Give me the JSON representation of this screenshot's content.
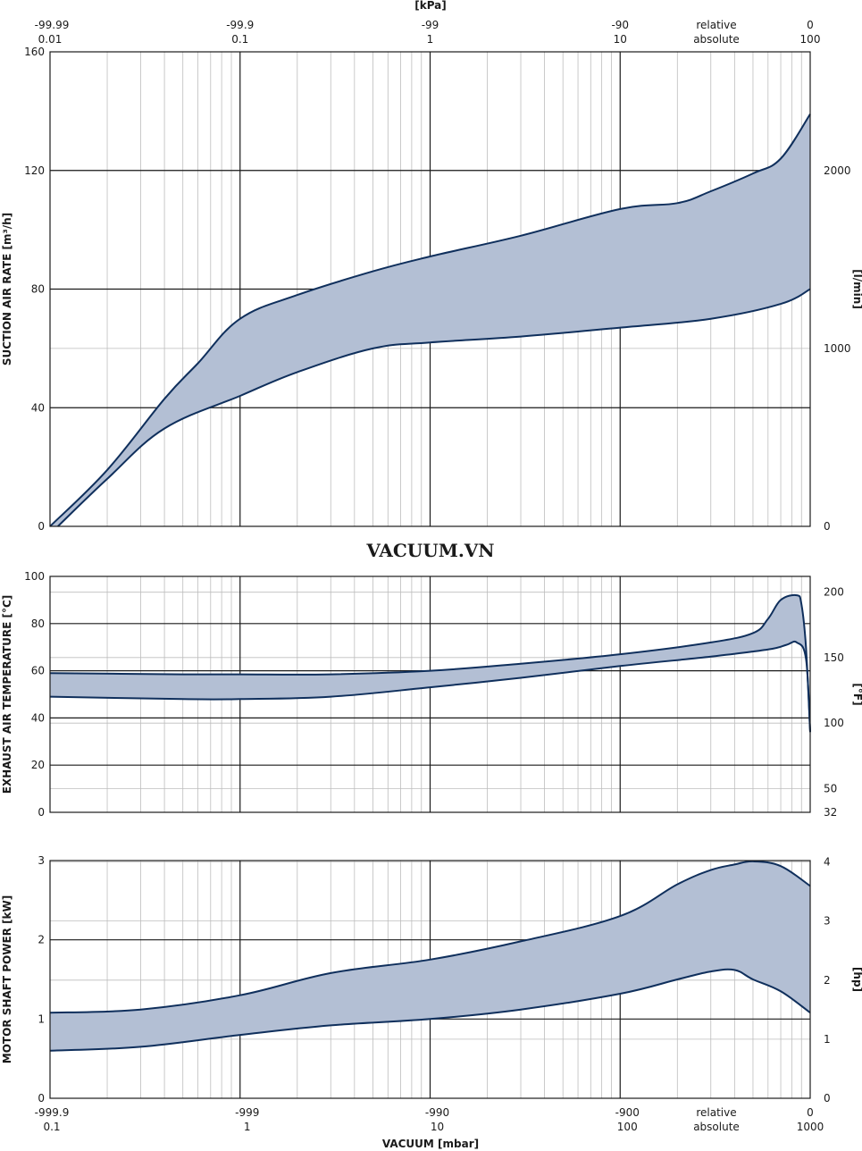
{
  "watermark": "VACUUM.VN",
  "top_axis": {
    "unit_label": "[kPa]",
    "ticks_relative": [
      "-99.99",
      "-99.9",
      "-99",
      "-90",
      "0"
    ],
    "ticks_absolute": [
      "0.01",
      "0.1",
      "1",
      "10",
      "100"
    ],
    "relative_label": "relative",
    "absolute_label": "absolute"
  },
  "bottom_axis": {
    "title": "VACUUM [mbar]",
    "ticks_relative": [
      "-999.9",
      "-999",
      "-990",
      "-900",
      "0"
    ],
    "ticks_absolute": [
      "0.1",
      "1",
      "10",
      "100",
      "1000"
    ],
    "relative_label": "relative",
    "absolute_label": "absolute"
  },
  "colors": {
    "band_fill": "#b3bfd4",
    "curve": "#0f2f5c",
    "grid_major": "#1a1a1a",
    "grid_minor": "#bdbdbd"
  },
  "chart_data": [
    {
      "type": "area",
      "title": "",
      "xlabel": "VACUUM [mbar]",
      "x_scale": "log",
      "xlim": [
        0.1,
        1000
      ],
      "ylabel": "SUCTION AIR RATE [m³/h]",
      "ylim": [
        0,
        160
      ],
      "y_ticks": [
        "0",
        "40",
        "80",
        "120",
        "160"
      ],
      "y2label": "[l/min]",
      "y2_ticks": [
        {
          "label": "0",
          "value": 0
        },
        {
          "label": "1000",
          "value": 60
        },
        {
          "label": "2000",
          "value": 120
        }
      ],
      "series": [
        {
          "x": [
            0.1,
            0.2,
            0.4,
            0.6,
            1,
            2,
            5,
            10,
            30,
            100,
            200,
            300,
            500,
            700,
            1000
          ],
          "y": [
            0,
            19,
            43,
            55,
            70,
            78,
            86,
            91,
            98,
            107,
            109,
            113,
            119,
            124,
            139
          ]
        },
        {
          "x": [
            0.11,
            0.2,
            0.4,
            1,
            2,
            5,
            10,
            30,
            100,
            300,
            700,
            1000
          ],
          "y": [
            0,
            16,
            33,
            44,
            52,
            60,
            62,
            64,
            67,
            70,
            75,
            80
          ]
        }
      ]
    },
    {
      "type": "area",
      "title": "",
      "xlabel": "VACUUM [mbar]",
      "x_scale": "log",
      "xlim": [
        0.1,
        1000
      ],
      "ylabel": "EXHAUST AIR TEMPERATURE [°C]",
      "ylim": [
        0,
        100
      ],
      "y_ticks": [
        "0",
        "20",
        "40",
        "60",
        "80",
        "100"
      ],
      "y2label": "[°F]",
      "y2_ticks": [
        {
          "label": "32",
          "value": 0
        },
        {
          "label": "50",
          "value": 10
        },
        {
          "label": "100",
          "value": 37.8
        },
        {
          "label": "150",
          "value": 65.6
        },
        {
          "label": "200",
          "value": 93.3
        }
      ],
      "series": [
        {
          "x": [
            0.1,
            0.5,
            1,
            3,
            10,
            30,
            100,
            300,
            500,
            600,
            700,
            850,
            900,
            950,
            1000
          ],
          "y": [
            59,
            58.5,
            58.5,
            58.5,
            60,
            63,
            67,
            72,
            76,
            82,
            90,
            92,
            88,
            70,
            34
          ]
        },
        {
          "x": [
            0.1,
            0.5,
            1,
            3,
            10,
            30,
            100,
            300,
            600,
            750,
            850,
            950,
            1000
          ],
          "y": [
            49,
            48,
            48,
            49,
            53,
            57,
            62,
            66,
            69,
            71,
            72,
            65,
            34
          ]
        }
      ]
    },
    {
      "type": "area",
      "title": "",
      "xlabel": "VACUUM [mbar]",
      "x_scale": "log",
      "xlim": [
        0.1,
        1000
      ],
      "ylabel": "MOTOR SHAFT POWER [kW]",
      "ylim": [
        0,
        3
      ],
      "y_ticks": [
        "0",
        "1",
        "2",
        "3"
      ],
      "y2label": "[hp]",
      "y2_ticks": [
        {
          "label": "0",
          "value": 0
        },
        {
          "label": "1",
          "value": 0.746
        },
        {
          "label": "2",
          "value": 1.491
        },
        {
          "label": "3",
          "value": 2.237
        },
        {
          "label": "4",
          "value": 2.983
        }
      ],
      "series": [
        {
          "x": [
            0.1,
            0.3,
            1,
            3,
            10,
            30,
            100,
            200,
            300,
            400,
            500,
            700,
            1000
          ],
          "y": [
            1.08,
            1.12,
            1.3,
            1.58,
            1.75,
            1.98,
            2.3,
            2.7,
            2.88,
            2.95,
            2.99,
            2.93,
            2.68
          ]
        },
        {
          "x": [
            0.1,
            0.3,
            1,
            3,
            10,
            30,
            100,
            200,
            300,
            400,
            500,
            700,
            1000
          ],
          "y": [
            0.6,
            0.65,
            0.8,
            0.92,
            1.0,
            1.12,
            1.32,
            1.5,
            1.6,
            1.62,
            1.5,
            1.35,
            1.08
          ]
        }
      ]
    }
  ]
}
